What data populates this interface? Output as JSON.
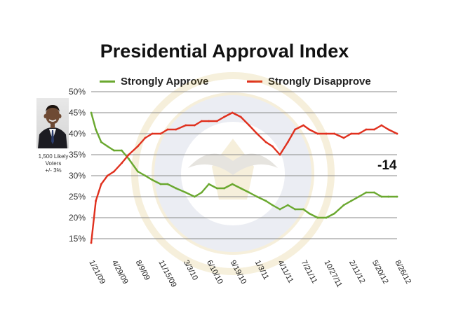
{
  "chart_data": {
    "type": "line",
    "title": "Presidential Approval Index",
    "xlabel": "",
    "ylabel": "",
    "ylim": [
      15,
      50
    ],
    "yticks": [
      "15%",
      "20%",
      "25%",
      "30%",
      "35%",
      "40%",
      "45%",
      "50%"
    ],
    "ytick_values": [
      15,
      20,
      25,
      30,
      35,
      40,
      45,
      50
    ],
    "xlim": [
      "1/21/09",
      "8/26/12"
    ],
    "xticks": [
      "1/21/09",
      "4/29/09",
      "8/9/09",
      "11/15/09",
      "3/3/10",
      "6/10/10",
      "9/19/10",
      "1/3/11",
      "4/11/11",
      "7/21/11",
      "10/27/11",
      "2/11/12",
      "5/20/12",
      "8/26/12"
    ],
    "grid": true,
    "legend": "top",
    "annotation": "-14",
    "colors": {
      "strongly_approve": "#6aa82f",
      "strongly_disapprove": "#e0301e"
    },
    "series": [
      {
        "name": "Strongly Approve",
        "x": [
          "1/21/09",
          "2/10/09",
          "3/5/09",
          "4/1/09",
          "4/29/09",
          "6/1/09",
          "7/1/09",
          "8/9/09",
          "9/10/09",
          "10/10/09",
          "11/15/09",
          "12/15/09",
          "1/20/10",
          "3/3/10",
          "4/10/10",
          "5/10/10",
          "6/10/10",
          "7/15/10",
          "8/15/10",
          "9/19/10",
          "10/25/10",
          "11/30/10",
          "1/3/11",
          "2/10/11",
          "3/10/11",
          "4/11/11",
          "5/15/11",
          "6/15/11",
          "7/21/11",
          "8/15/11",
          "9/20/11",
          "10/27/11",
          "12/1/11",
          "1/10/12",
          "2/11/12",
          "3/15/12",
          "4/15/12",
          "5/20/12",
          "6/20/12",
          "7/20/12",
          "8/26/12"
        ],
        "values": [
          45,
          41,
          38,
          37,
          36,
          36,
          34,
          31,
          30,
          29,
          28,
          28,
          27,
          26,
          25,
          26,
          28,
          27,
          27,
          28,
          27,
          26,
          25,
          24,
          23,
          22,
          23,
          22,
          22,
          21,
          20,
          20,
          21,
          23,
          24,
          25,
          26,
          26,
          25,
          25,
          25
        ]
      },
      {
        "name": "Strongly Disapprove",
        "x": [
          "1/21/09",
          "2/10/09",
          "3/5/09",
          "4/1/09",
          "4/29/09",
          "6/1/09",
          "7/1/09",
          "8/9/09",
          "9/10/09",
          "10/10/09",
          "11/15/09",
          "12/15/09",
          "1/20/10",
          "3/3/10",
          "4/10/10",
          "5/10/10",
          "6/10/10",
          "7/15/10",
          "8/15/10",
          "9/19/10",
          "10/25/10",
          "11/30/10",
          "1/3/11",
          "2/10/11",
          "3/10/11",
          "4/11/11",
          "5/15/11",
          "6/15/11",
          "7/21/11",
          "8/15/11",
          "9/20/11",
          "10/27/11",
          "12/1/11",
          "1/10/12",
          "2/11/12",
          "3/15/12",
          "4/15/12",
          "5/20/12",
          "6/20/12",
          "7/20/12",
          "8/26/12"
        ],
        "values": [
          14,
          24,
          28,
          30,
          31,
          33,
          35,
          37,
          39,
          40,
          40,
          41,
          41,
          42,
          42,
          43,
          43,
          43,
          44,
          45,
          44,
          42,
          40,
          38,
          37,
          35,
          38,
          41,
          42,
          41,
          40,
          40,
          40,
          39,
          40,
          40,
          41,
          41,
          42,
          41,
          40
        ]
      }
    ]
  },
  "sidebar": {
    "voters_note": [
      "1,500 Likely",
      "Voters",
      "+/- 3%"
    ]
  }
}
